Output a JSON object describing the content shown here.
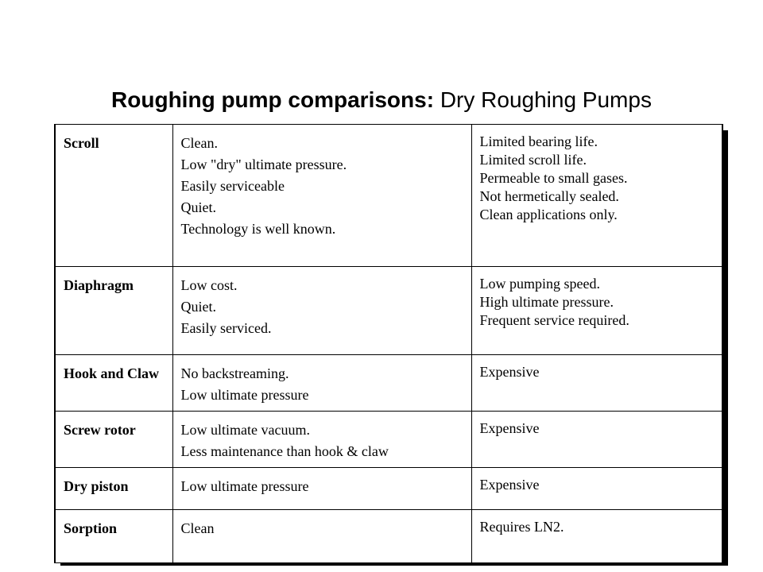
{
  "title": {
    "bold_part": "Roughing pump comparisons:",
    "regular_part": " Dry Roughing Pumps"
  },
  "table": {
    "rows": [
      {
        "type": "Scroll",
        "pros": [
          "Clean.",
          "Low \"dry\" ultimate pressure.",
          "Easily serviceable",
          "Quiet.",
          "Technology is well known."
        ],
        "cons": [
          "Limited bearing life.",
          "Limited scroll life.",
          "Permeable to small gases.",
          "Not hermetically sealed.",
          "Clean applications only."
        ]
      },
      {
        "type": "Diaphragm",
        "pros": [
          "Low cost.",
          "Quiet.",
          "Easily serviced."
        ],
        "cons": [
          "Low pumping speed.",
          "High ultimate pressure.",
          "Frequent service required."
        ]
      },
      {
        "type": "Hook and Claw",
        "pros": [
          "No backstreaming.",
          "Low ultimate pressure"
        ],
        "cons": [
          "Expensive"
        ]
      },
      {
        "type": "Screw rotor",
        "pros": [
          "Low ultimate vacuum.",
          "Less maintenance than hook & claw"
        ],
        "cons": [
          "Expensive"
        ]
      },
      {
        "type": "Dry piston",
        "pros": [
          "Low ultimate pressure"
        ],
        "cons": [
          "Expensive"
        ]
      },
      {
        "type": "Sorption",
        "pros": [
          "Clean"
        ],
        "cons": [
          "Requires LN2."
        ]
      }
    ]
  }
}
